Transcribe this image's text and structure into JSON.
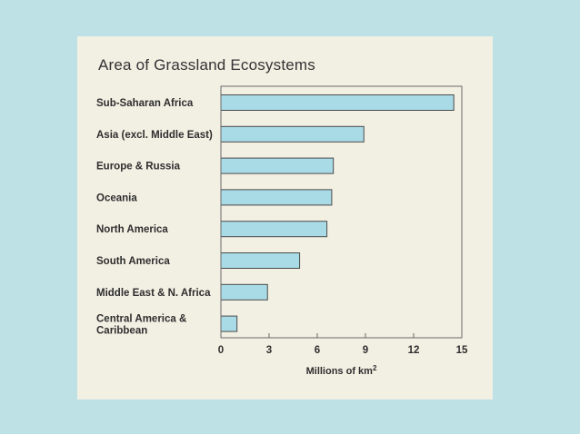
{
  "chart_data": {
    "type": "bar",
    "orientation": "horizontal",
    "title": "Area of Grassland Ecosystems",
    "categories": [
      "Sub-Saharan Africa",
      "Asia (excl. Middle East)",
      "Europe & Russia",
      "Oceania",
      "North America",
      "South America",
      "Middle East & N. Africa",
      "Central America & Caribbean"
    ],
    "values": [
      14.5,
      8.9,
      7.0,
      6.9,
      6.6,
      4.9,
      2.9,
      1.0
    ],
    "xlabel": "Millions of km",
    "xlabel_superscript": "2",
    "xlim": [
      0,
      15
    ],
    "xticks": [
      0,
      3,
      6,
      9,
      12,
      15
    ],
    "grid": false,
    "bar_color": "#a9dbe6",
    "bar_edge_color": "#4a4a4a"
  }
}
